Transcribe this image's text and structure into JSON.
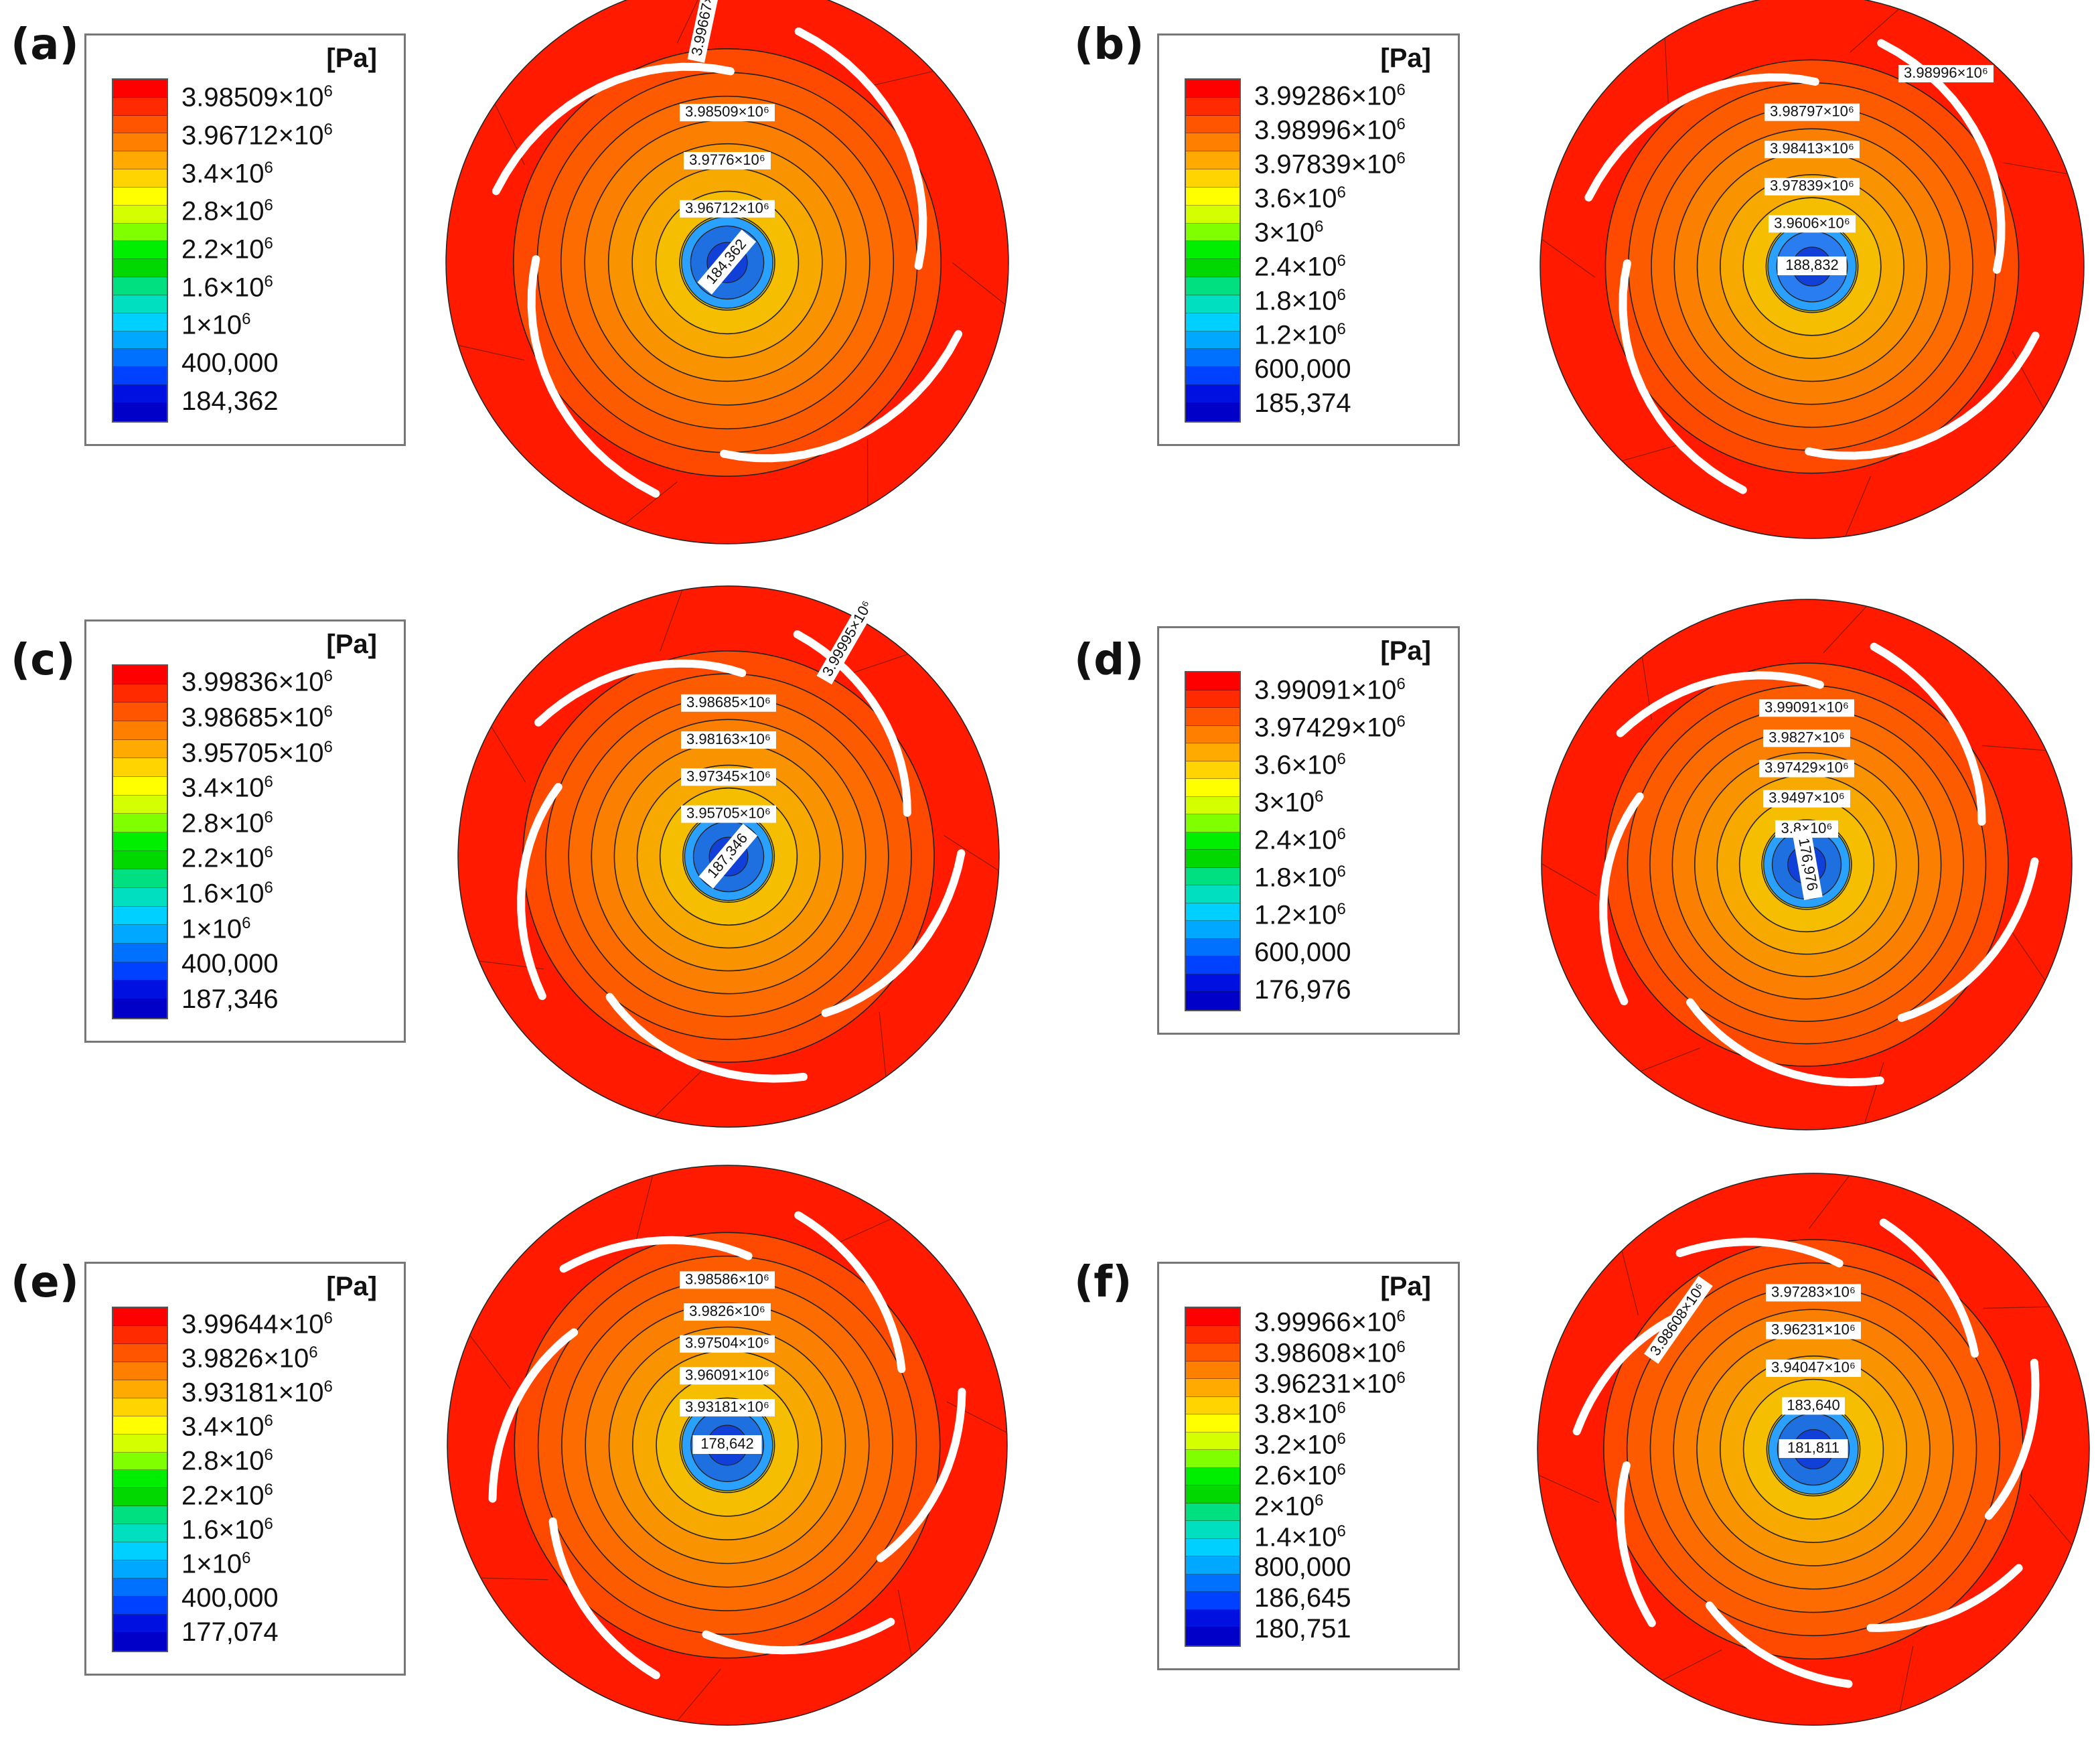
{
  "panels": [
    {
      "label": "(a)",
      "unit": "[Pa]",
      "blades": 4,
      "hub": "#1e6fe0",
      "legend": [
        "3.98509×10^6",
        "3.96712×10^6",
        "3.4×10^6",
        "2.8×10^6",
        "2.2×10^6",
        "1.6×10^6",
        "1×10^6",
        "400,000",
        "184,362"
      ],
      "contours": [
        "3.98509×10^6",
        "3.9776×10^6",
        "3.96712×10^6"
      ],
      "extra": [
        {
          "text": "3.99667×10^6",
          "pos": "top-rotated"
        }
      ],
      "center": "184,362"
    },
    {
      "label": "(b)",
      "unit": "[Pa]",
      "blades": 4,
      "hub": "#2a7df0",
      "legend": [
        "3.99286×10^6",
        "3.98996×10^6",
        "3.97839×10^6",
        "3.6×10^6",
        "3×10^6",
        "2.4×10^6",
        "1.8×10^6",
        "1.2×10^6",
        "600,000",
        "185,374"
      ],
      "contours": [
        "3.98797×10^6",
        "3.98413×10^6",
        "3.97839×10^6",
        "3.9606×10^6"
      ],
      "extra": [
        {
          "text": "3.98996×10^6",
          "pos": "upper-right"
        }
      ],
      "center": "188,832"
    },
    {
      "label": "(c)",
      "unit": "[Pa]",
      "blades": 5,
      "hub": "#1e6fe0",
      "legend": [
        "3.99836×10^6",
        "3.98685×10^6",
        "3.95705×10^6",
        "3.4×10^6",
        "2.8×10^6",
        "2.2×10^6",
        "1.6×10^6",
        "1×10^6",
        "400,000",
        "187,346"
      ],
      "contours": [
        "3.98685×10^6",
        "3.98163×10^6",
        "3.97345×10^6",
        "3.95705×10^6"
      ],
      "extra": [
        {
          "text": "3.99995×10^6",
          "pos": "upper-right-rotated"
        }
      ],
      "center": "187,346"
    },
    {
      "label": "(d)",
      "unit": "[Pa]",
      "blades": 5,
      "hub": "#1e6fe0",
      "legend": [
        "3.99091×10^6",
        "3.97429×10^6",
        "3.6×10^6",
        "3×10^6",
        "2.4×10^6",
        "1.8×10^6",
        "1.2×10^6",
        "600,000",
        "176,976"
      ],
      "contours": [
        "3.99091×10^6",
        "3.9827×10^6",
        "3.97429×10^6",
        "3.9497×10^6",
        "3.8×10^6"
      ],
      "extra": [],
      "center": "176,976"
    },
    {
      "label": "(e)",
      "unit": "[Pa]",
      "blades": 6,
      "hub": "#1e6fe0",
      "legend": [
        "3.99644×10^6",
        "3.9826×10^6",
        "3.93181×10^6",
        "3.4×10^6",
        "2.8×10^6",
        "2.2×10^6",
        "1.6×10^6",
        "1×10^6",
        "400,000",
        "177,074"
      ],
      "contours": [
        "3.98586×10^6",
        "3.9826×10^6",
        "3.97504×10^6",
        "3.96091×10^6",
        "3.93181×10^6"
      ],
      "extra": [],
      "center": "178,642"
    },
    {
      "label": "(f)",
      "unit": "[Pa]",
      "blades": 7,
      "hub": "#1e6fe0",
      "legend": [
        "3.99966×10^6",
        "3.98608×10^6",
        "3.96231×10^6",
        "3.8×10^6",
        "3.2×10^6",
        "2.6×10^6",
        "2×10^6",
        "1.4×10^6",
        "800,000",
        "186,645",
        "180,751"
      ],
      "contours": [
        "3.97283×10^6",
        "3.96231×10^6",
        "3.94047×10^6",
        "183,640"
      ],
      "extra": [
        {
          "text": "3.98608×10^6",
          "pos": "upper-left-rotated"
        }
      ],
      "center": "181,811"
    }
  ],
  "colors": {
    "outer": "#ff1a00",
    "impeller": "#ff5a00",
    "legend_top": "#ff0000",
    "legend_bottom": "#0000c8"
  }
}
